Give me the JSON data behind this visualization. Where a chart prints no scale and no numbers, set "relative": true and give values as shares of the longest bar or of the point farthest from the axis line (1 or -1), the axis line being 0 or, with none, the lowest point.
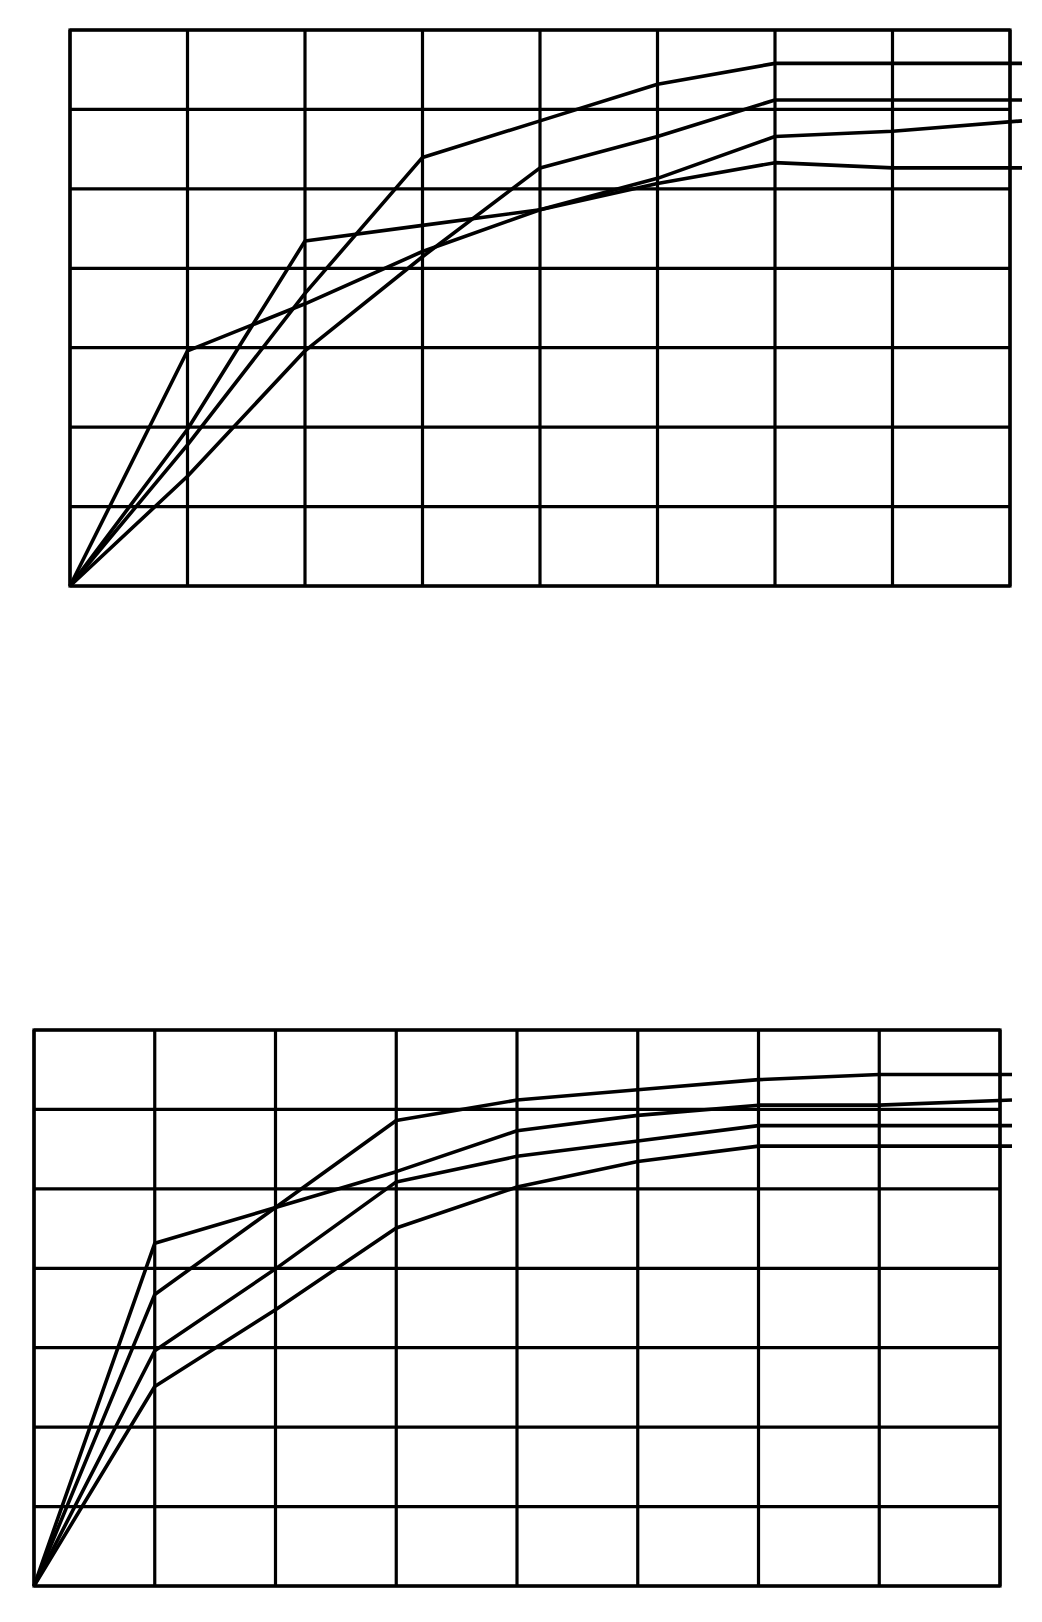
{
  "chart_data": [
    {
      "type": "line",
      "relative": true,
      "grid": true,
      "tick_labels": false,
      "marker": "none",
      "line_style": "solid",
      "categories": [
        null,
        null,
        null,
        null,
        null,
        null,
        null,
        null,
        null
      ],
      "series": [
        {
          "color": "#000000",
          "values": [
            0,
            0.27,
            0.56,
            0.82,
            0.89,
            0.96,
            1.0,
            1.0,
            1.0
          ]
        },
        {
          "color": "#000000",
          "values": [
            0,
            0.21,
            0.45,
            0.63,
            0.8,
            0.86,
            0.93,
            0.93,
            0.93
          ]
        },
        {
          "color": "#000000",
          "values": [
            0,
            0.3,
            0.66,
            0.69,
            0.72,
            0.78,
            0.86,
            0.87,
            0.89
          ]
        },
        {
          "color": "#000000",
          "values": [
            0,
            0.45,
            0.54,
            0.64,
            0.72,
            0.77,
            0.81,
            0.8,
            0.8
          ]
        }
      ]
    },
    {
      "type": "line",
      "relative": true,
      "grid": true,
      "tick_labels": false,
      "marker": "none",
      "line_style": "solid",
      "categories": [
        null,
        null,
        null,
        null,
        null,
        null,
        null,
        null,
        null
      ],
      "series": [
        {
          "color": "#000000",
          "values": [
            0,
            0.57,
            0.74,
            0.91,
            0.95,
            0.97,
            0.99,
            1.0,
            1.0
          ]
        },
        {
          "color": "#000000",
          "values": [
            0,
            0.67,
            0.74,
            0.81,
            0.89,
            0.92,
            0.94,
            0.94,
            0.95
          ]
        },
        {
          "color": "#000000",
          "values": [
            0,
            0.46,
            0.62,
            0.79,
            0.84,
            0.87,
            0.9,
            0.9,
            0.9
          ]
        },
        {
          "color": "#000000",
          "values": [
            0,
            0.39,
            0.54,
            0.7,
            0.78,
            0.83,
            0.86,
            0.86,
            0.86
          ]
        }
      ]
    }
  ]
}
